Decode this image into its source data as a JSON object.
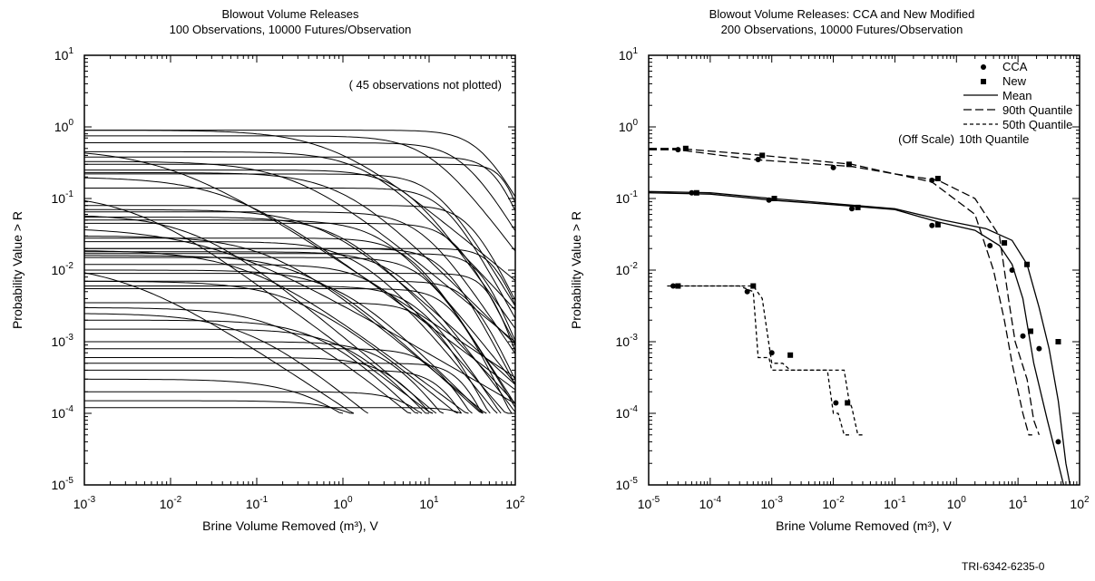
{
  "footer_id": "TRI-6342-6235-0",
  "chart_data": [
    {
      "type": "line",
      "title": "Blowout Volume Releases",
      "subtitle": "100 Observations, 10000 Futures/Observation",
      "xlabel": "Brine Volume Removed (m³), V",
      "ylabel": "Probability Value > R",
      "xscale": "log",
      "yscale": "log",
      "xlim": [
        0.001,
        100
      ],
      "ylim": [
        1e-05,
        10
      ],
      "xticks": [
        {
          "base": "10",
          "exp": "-3"
        },
        {
          "base": "10",
          "exp": "-2"
        },
        {
          "base": "10",
          "exp": "-1"
        },
        {
          "base": "10",
          "exp": "0"
        },
        {
          "base": "10",
          "exp": "1"
        },
        {
          "base": "10",
          "exp": "2"
        }
      ],
      "yticks": [
        {
          "base": "10",
          "exp": "-5"
        },
        {
          "base": "10",
          "exp": "-4"
        },
        {
          "base": "10",
          "exp": "-3"
        },
        {
          "base": "10",
          "exp": "-2"
        },
        {
          "base": "10",
          "exp": "-1"
        },
        {
          "base": "10",
          "exp": "0"
        },
        {
          "base": "10",
          "exp": "1"
        }
      ],
      "annotation": "( 45 observations not plotted)",
      "line_color": "#000000",
      "curve_params": [
        [
          0.9,
          40,
          2.2
        ],
        [
          0.75,
          10,
          1.6
        ],
        [
          0.6,
          25,
          2.0
        ],
        [
          0.45,
          2,
          1.3
        ],
        [
          0.38,
          60,
          3.0
        ],
        [
          0.33,
          0.3,
          1.0
        ],
        [
          0.25,
          5,
          1.7
        ],
        [
          0.23,
          1,
          1.2
        ],
        [
          0.22,
          12,
          2.0
        ],
        [
          0.2,
          0.05,
          0.9
        ],
        [
          0.08,
          30,
          2.5
        ],
        [
          0.07,
          0.6,
          1.1
        ],
        [
          0.065,
          8,
          1.8
        ],
        [
          0.06,
          0.02,
          1.0
        ],
        [
          0.05,
          3,
          1.5
        ],
        [
          0.045,
          20,
          2.4
        ],
        [
          0.03,
          0.15,
          1.0
        ],
        [
          0.028,
          6,
          1.9
        ],
        [
          0.025,
          1.5,
          1.4
        ],
        [
          0.02,
          15,
          2.3
        ],
        [
          0.019,
          0.08,
          0.9
        ],
        [
          0.018,
          4,
          1.6
        ],
        [
          0.017,
          40,
          3.0
        ],
        [
          0.016,
          0.4,
          1.1
        ],
        [
          0.015,
          9,
          2.0
        ],
        [
          0.012,
          2.5,
          1.5
        ],
        [
          0.01,
          0.9,
          1.2
        ],
        [
          0.007,
          30,
          2.6
        ],
        [
          0.006,
          7,
          1.8
        ],
        [
          0.0055,
          18,
          2.5
        ],
        [
          0.003,
          0.2,
          1.0
        ],
        [
          0.0015,
          1.2,
          1.3
        ],
        [
          0.001,
          3.5,
          1.6
        ],
        [
          0.0008,
          12,
          2.1
        ],
        [
          0.0005,
          25,
          2.8
        ],
        [
          0.0003,
          0.5,
          1.1
        ],
        [
          0.0002,
          8,
          1.9
        ],
        [
          0.00015,
          2,
          1.4
        ],
        [
          0.00012,
          40,
          3.0
        ],
        [
          0.5,
          0.01,
          0.8
        ],
        [
          0.12,
          0.004,
          0.9
        ],
        [
          0.04,
          0.03,
          0.7
        ],
        [
          0.3,
          80,
          4.0
        ],
        [
          0.013,
          0.003,
          0.8
        ],
        [
          0.009,
          50,
          3.5
        ],
        [
          0.0035,
          10,
          2.2
        ],
        [
          0.002,
          0.6,
          1.2
        ],
        [
          0.0006,
          4,
          1.7
        ],
        [
          0.0004,
          15,
          2.4
        ],
        [
          0.0025,
          0.08,
          1.0
        ],
        [
          0.055,
          1.0,
          1.3
        ],
        [
          0.14,
          15,
          2.2
        ],
        [
          0.9,
          0.8,
          1.0
        ],
        [
          0.02,
          60,
          3.2
        ],
        [
          0.007,
          0.3,
          1.0
        ]
      ]
    },
    {
      "type": "line",
      "title": "Blowout Volume Releases:  CCA and New Modified",
      "subtitle": "200 Observations, 10000 Futures/Observation",
      "xlabel": "Brine Volume Removed (m³), V",
      "ylabel": "Probability Value > R",
      "xscale": "log",
      "yscale": "log",
      "xlim": [
        1e-05,
        100
      ],
      "ylim": [
        1e-05,
        10
      ],
      "xticks": [
        {
          "base": "10",
          "exp": "-5"
        },
        {
          "base": "10",
          "exp": "-4"
        },
        {
          "base": "10",
          "exp": "-3"
        },
        {
          "base": "10",
          "exp": "-2"
        },
        {
          "base": "10",
          "exp": "-1"
        },
        {
          "base": "10",
          "exp": "0"
        },
        {
          "base": "10",
          "exp": "1"
        },
        {
          "base": "10",
          "exp": "2"
        }
      ],
      "yticks": [
        {
          "base": "10",
          "exp": "-5"
        },
        {
          "base": "10",
          "exp": "-4"
        },
        {
          "base": "10",
          "exp": "-3"
        },
        {
          "base": "10",
          "exp": "-2"
        },
        {
          "base": "10",
          "exp": "-1"
        },
        {
          "base": "10",
          "exp": "0"
        },
        {
          "base": "10",
          "exp": "1"
        }
      ],
      "legend": {
        "position": "top-right",
        "markers": [
          {
            "label": "CCA",
            "marker": "circle"
          },
          {
            "label": "New",
            "marker": "square"
          }
        ],
        "lines": [
          {
            "label": "Mean",
            "dash": "solid"
          },
          {
            "label": "90th Quantile",
            "dash": "long-dash"
          },
          {
            "label": "50th Quantile",
            "dash": "short-dash"
          },
          {
            "label": "10th Quantile",
            "dash": "none",
            "prefix": "(Off Scale)"
          }
        ]
      },
      "series": [
        {
          "name": "90th Quantile",
          "group": "CCA",
          "dash": "long-dash",
          "marker": "circle",
          "x": [
            1e-05,
            3e-05,
            0.0005,
            0.02,
            0.1,
            0.4,
            2,
            4,
            6,
            8,
            12,
            15,
            17
          ],
          "y": [
            0.48,
            0.48,
            0.35,
            0.28,
            0.22,
            0.17,
            0.06,
            0.01,
            0.002,
            0.0005,
            0.0001,
            5e-05,
            5e-05
          ],
          "mx": [
            3e-05,
            0.0006,
            0.01,
            0.4,
            3.5,
            12
          ],
          "my": [
            0.48,
            0.35,
            0.27,
            0.18,
            0.022,
            0.0012
          ]
        },
        {
          "name": "90th Quantile",
          "group": "New",
          "dash": "long-dash",
          "marker": "square",
          "x": [
            1e-05,
            3e-05,
            0.0007,
            0.02,
            0.1,
            0.5,
            2,
            5,
            7,
            9,
            14,
            18,
            22
          ],
          "y": [
            0.5,
            0.5,
            0.4,
            0.3,
            0.22,
            0.18,
            0.1,
            0.03,
            0.004,
            0.001,
            0.0003,
            8e-05,
            5e-05
          ],
          "mx": [
            4e-05,
            0.0007,
            0.018,
            0.5,
            6,
            16
          ],
          "my": [
            0.5,
            0.4,
            0.3,
            0.19,
            0.024,
            0.0014
          ]
        },
        {
          "name": "Mean",
          "group": "CCA",
          "dash": "solid",
          "marker": "circle",
          "x": [
            1e-05,
            0.0001,
            0.001,
            0.01,
            0.1,
            0.5,
            2,
            5,
            8,
            12,
            18,
            30,
            40,
            55
          ],
          "y": [
            0.12,
            0.115,
            0.095,
            0.082,
            0.07,
            0.047,
            0.036,
            0.022,
            0.012,
            0.004,
            0.0005,
            8e-05,
            3e-05,
            1e-05
          ],
          "mx": [
            5e-05,
            0.0009,
            0.02,
            0.4,
            8,
            22,
            45
          ],
          "my": [
            0.12,
            0.095,
            0.072,
            0.042,
            0.01,
            0.0008,
            4e-05
          ]
        },
        {
          "name": "Mean",
          "group": "New",
          "dash": "solid",
          "marker": "square",
          "x": [
            1e-05,
            0.0001,
            0.001,
            0.01,
            0.1,
            0.6,
            3,
            8,
            14,
            22,
            32,
            45,
            60,
            70
          ],
          "y": [
            0.125,
            0.12,
            0.1,
            0.085,
            0.072,
            0.05,
            0.038,
            0.026,
            0.012,
            0.003,
            0.0008,
            0.00015,
            2e-05,
            1e-05
          ],
          "mx": [
            6e-05,
            0.0011,
            0.025,
            0.5,
            14,
            45
          ],
          "my": [
            0.12,
            0.1,
            0.075,
            0.043,
            0.012,
            0.001
          ]
        },
        {
          "name": "50th Quantile",
          "group": "CCA",
          "dash": "short-dash",
          "marker": "circle",
          "x": [
            2e-05,
            0.0003,
            0.0005,
            0.0006,
            0.0009,
            0.001,
            0.002,
            0.008,
            0.01,
            0.012,
            0.015,
            0.02
          ],
          "y": [
            0.006,
            0.006,
            0.005,
            0.0006,
            0.0006,
            0.0004,
            0.0004,
            0.0004,
            0.0001,
            0.0001,
            5e-05,
            5e-05
          ],
          "mx": [
            2.5e-05,
            0.0004,
            0.001,
            0.011
          ],
          "my": [
            0.006,
            0.005,
            0.0007,
            0.00014
          ]
        },
        {
          "name": "50th Quantile",
          "group": "New",
          "dash": "short-dash",
          "marker": "square",
          "x": [
            3e-05,
            0.0005,
            0.0007,
            0.001,
            0.0015,
            0.002,
            0.015,
            0.018,
            0.02,
            0.025,
            0.03
          ],
          "y": [
            0.006,
            0.006,
            0.004,
            0.0005,
            0.0005,
            0.0004,
            0.0004,
            0.00015,
            0.00012,
            5e-05,
            5e-05
          ],
          "mx": [
            3e-05,
            0.0005,
            0.002,
            0.017
          ],
          "my": [
            0.006,
            0.006,
            0.00065,
            0.00014
          ]
        }
      ]
    }
  ]
}
